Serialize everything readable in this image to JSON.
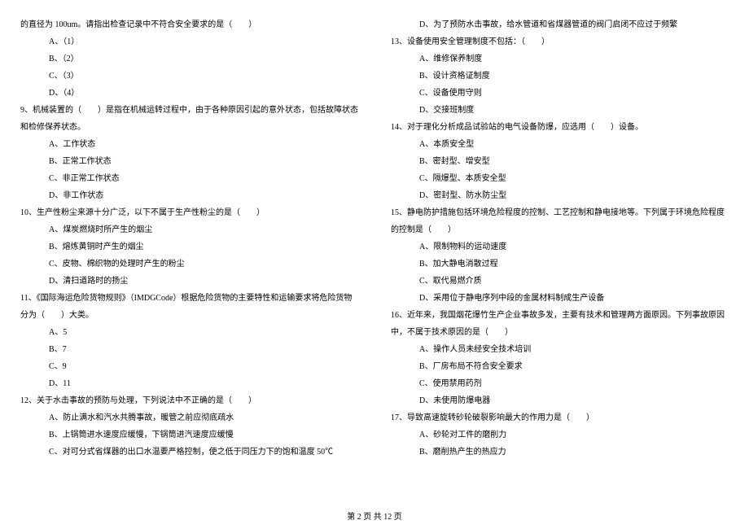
{
  "left": {
    "q_cont": "的直径为 100um。请指出检查记录中不符合安全要求的是（　　）",
    "q_cont_opts": [
      "A、（1）",
      "B、（2）",
      "C、（3）",
      "D、（4）"
    ],
    "q9": "9、机械装置的（　　）是指在机械运转过程中，由于各种原因引起的意外状态，包括故障状态和检修保养状态。",
    "q9_opts": [
      "A、工作状态",
      "B、正常工作状态",
      "C、非正常工作状态",
      "D、非工作状态"
    ],
    "q10": "10、生产性粉尘来源十分广泛，以下不属于生产性粉尘的是（　　）",
    "q10_opts": [
      "A、煤炭燃烧时所产生的烟尘",
      "B、熔炼黄铜时产生的烟尘",
      "C、皮物、棉织物的处理时产生的粉尘",
      "D、清扫道路时的扬尘"
    ],
    "q11": "11、《国际海运危险货物规则》（IMDGCode）根据危险货物的主要特性和运输要求将危险货物分为（　　）大类。",
    "q11_opts": [
      "A、5",
      "B、7",
      "C、9",
      "D、11"
    ],
    "q12": "12、关于水击事故的预防与处理，下列说法中不正确的是（　　）",
    "q12_opts": [
      "A、防止满水和汽水共腾事故，暖管之前应彻底疏水",
      "B、上锅筒进水速度应缓慢，下锅筒进汽速度应缓慢",
      "C、对可分式省煤器的出口水温要严格控制，使之低于同压力下的饱和温度 50℃"
    ]
  },
  "right": {
    "q12d": "D、为了预防水击事故，给水管道和省煤器管道的阀门启闭不应过于频繁",
    "q13": "13、设备使用安全管理制度不包括：（　　）",
    "q13_opts": [
      "A、维修保养制度",
      "B、设计资格证制度",
      "C、设备使用守则",
      "D、交接班制度"
    ],
    "q14": "14、对于理化分析成品试验站的电气设备防爆，应选用（　　）设备。",
    "q14_opts": [
      "A、本质安全型",
      "B、密封型、增安型",
      "C、隔爆型、本质安全型",
      "D、密封型、防水防尘型"
    ],
    "q15": "15、静电防护措施包括环境危险程度的控制、工艺控制和静电接地等。下列属于环境危险程度的控制是（　　）",
    "q15_opts": [
      "A、限制物料的运动速度",
      "B、加大静电消散过程",
      "C、取代易燃介质",
      "D、采用位于静电序列中段的金属材料制成生产设备"
    ],
    "q16": "16、近年来，我国烟花爆竹生产企业事故多发，主要有技术和管理两方面原因。下列事故原因中，不属于技术原因的是（　　）",
    "q16_opts": [
      "A、操作人员未经安全技术培训",
      "B、厂房布局不符合安全要求",
      "C、使用禁用药剂",
      "D、未使用防爆电器"
    ],
    "q17": "17、导致高速旋转砂轮破裂影响最大的作用力是（　　）",
    "q17_opts": [
      "A、砂轮对工件的磨削力",
      "B、磨削热产生的热应力"
    ]
  },
  "footer": "第 2 页 共 12 页"
}
